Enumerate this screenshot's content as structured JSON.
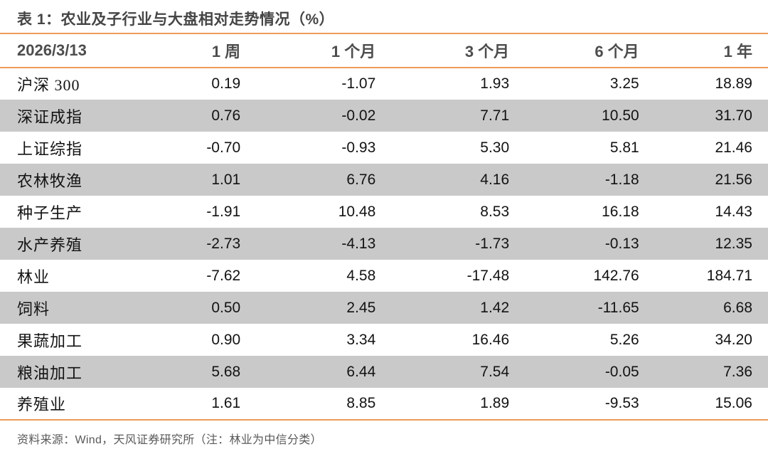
{
  "title": "表 1：农业及子行业与大盘相对走势情况（%）",
  "footer": "资料来源：Wind，天风证券研究所（注：林业为中信分类）",
  "colors": {
    "accent_line": "#EE9C59",
    "row_alt_bg": "#C9C9C9",
    "title_text": "#454545",
    "header_text": "#4D4D4D",
    "body_text": "#131313",
    "footer_text": "#595959"
  },
  "chart_data": {
    "type": "table",
    "title": "表 1：农业及子行业与大盘相对走势情况（%）",
    "date": "2026/3/13",
    "columns": [
      "1 周",
      "1 个月",
      "3 个月",
      "6 个月",
      "1 年"
    ],
    "rows": [
      {
        "label": "沪深 300",
        "values": [
          "0.19",
          "-1.07",
          "1.93",
          "3.25",
          "18.89"
        ]
      },
      {
        "label": "深证成指",
        "values": [
          "0.76",
          "-0.02",
          "7.71",
          "10.50",
          "31.70"
        ]
      },
      {
        "label": "上证综指",
        "values": [
          "-0.70",
          "-0.93",
          "5.30",
          "5.81",
          "21.46"
        ]
      },
      {
        "label": "农林牧渔",
        "values": [
          "1.01",
          "6.76",
          "4.16",
          "-1.18",
          "21.56"
        ]
      },
      {
        "label": "种子生产",
        "values": [
          "-1.91",
          "10.48",
          "8.53",
          "16.18",
          "14.43"
        ]
      },
      {
        "label": "水产养殖",
        "values": [
          "-2.73",
          "-4.13",
          "-1.73",
          "-0.13",
          "12.35"
        ]
      },
      {
        "label": "林业",
        "values": [
          "-7.62",
          "4.58",
          "-17.48",
          "142.76",
          "184.71"
        ]
      },
      {
        "label": "饲料",
        "values": [
          "0.50",
          "2.45",
          "1.42",
          "-11.65",
          "6.68"
        ]
      },
      {
        "label": "果蔬加工",
        "values": [
          "0.90",
          "3.34",
          "16.46",
          "5.26",
          "34.20"
        ]
      },
      {
        "label": "粮油加工",
        "values": [
          "5.68",
          "6.44",
          "7.54",
          "-0.05",
          "7.36"
        ]
      },
      {
        "label": "养殖业",
        "values": [
          "1.61",
          "8.85",
          "1.89",
          "-9.53",
          "15.06"
        ]
      }
    ]
  }
}
